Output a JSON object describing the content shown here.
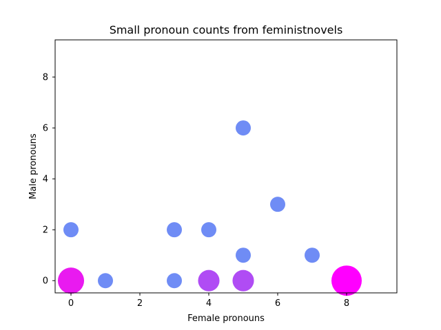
{
  "chart_data": {
    "type": "scatter",
    "title": "Small pronoun counts from feministnovels",
    "xlabel": "Female pronouns",
    "ylabel": "Male pronouns",
    "xlim": [
      -0.46,
      9.46
    ],
    "ylim": [
      -0.48,
      9.46
    ],
    "xticks": [
      0,
      2,
      4,
      6,
      8
    ],
    "yticks": [
      0,
      2,
      4,
      6,
      8
    ],
    "grid": false,
    "size_meaning": "count of novels at this point; color shifts from blue to magenta as size grows",
    "points": [
      {
        "x": 0,
        "y": 0,
        "count": 3,
        "color": "#e91af0"
      },
      {
        "x": 0,
        "y": 2,
        "count": 1,
        "color": "#6f8cf5"
      },
      {
        "x": 1,
        "y": 0,
        "count": 1,
        "color": "#6f8cf5"
      },
      {
        "x": 3,
        "y": 0,
        "count": 1,
        "color": "#6f8cf5"
      },
      {
        "x": 3,
        "y": 2,
        "count": 1,
        "color": "#6f8cf5"
      },
      {
        "x": 4,
        "y": 0,
        "count": 2,
        "color": "#b04cf4"
      },
      {
        "x": 4,
        "y": 2,
        "count": 1,
        "color": "#6f8cf5"
      },
      {
        "x": 5,
        "y": 0,
        "count": 2,
        "color": "#b04cf4"
      },
      {
        "x": 5,
        "y": 1,
        "count": 1,
        "color": "#6f8cf5"
      },
      {
        "x": 5,
        "y": 6,
        "count": 1,
        "color": "#6f8cf5"
      },
      {
        "x": 6,
        "y": 3,
        "count": 1,
        "color": "#6f8cf5"
      },
      {
        "x": 7,
        "y": 1,
        "count": 1,
        "color": "#6f8cf5"
      },
      {
        "x": 8,
        "y": 0,
        "count": 4,
        "color": "#ff00ff"
      }
    ]
  }
}
